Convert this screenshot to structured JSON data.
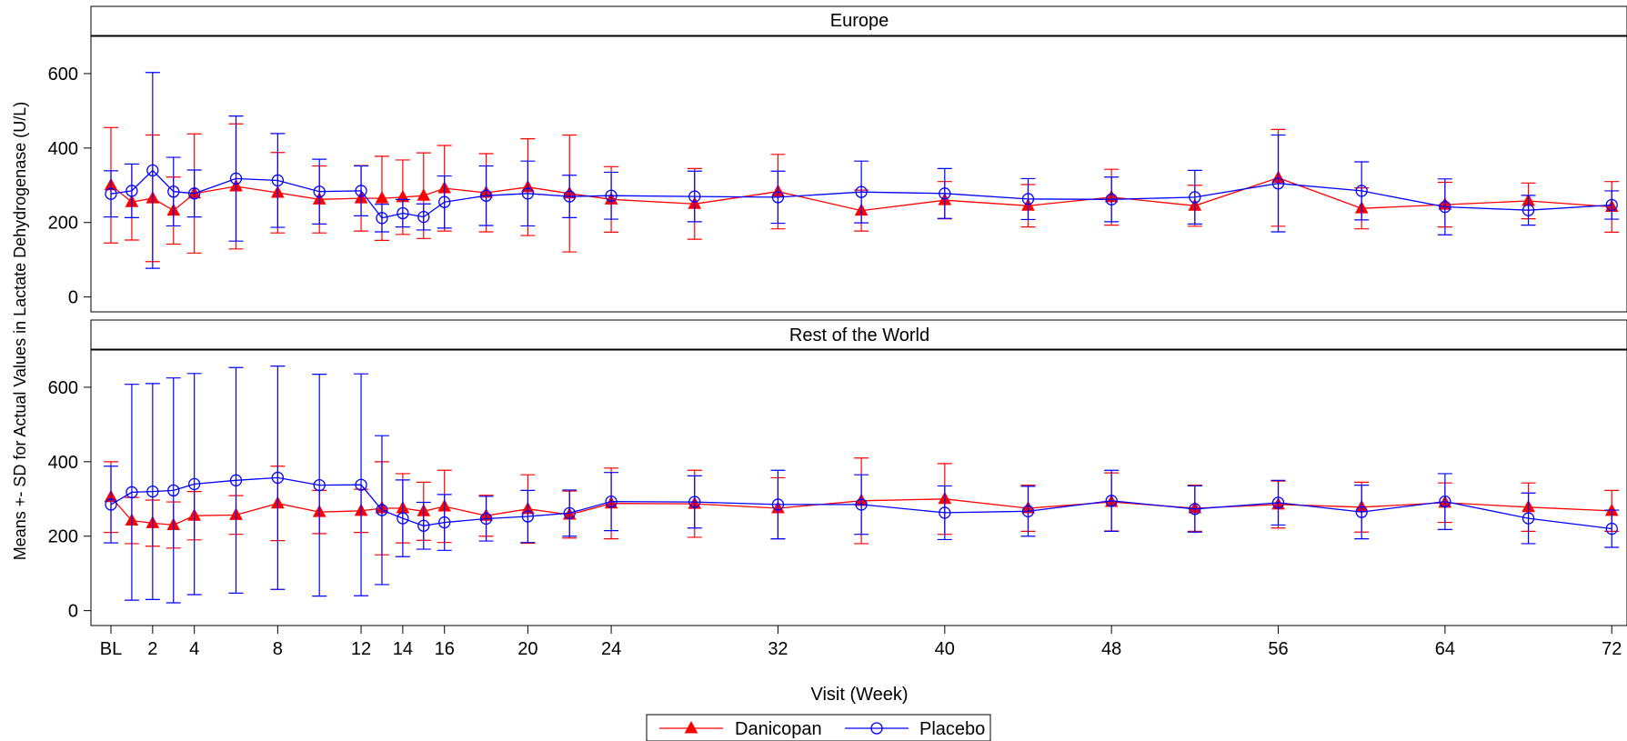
{
  "chart_data": {
    "type": "line",
    "ylabel": "Means +- SD for Actual Values in Lactate Dehydrogenase (U/L)",
    "xlabel": "Visit (Week)",
    "x_ticks": [
      {
        "x": 0,
        "label": "BL"
      },
      {
        "x": 2,
        "label": "2"
      },
      {
        "x": 4,
        "label": "4"
      },
      {
        "x": 8,
        "label": "8"
      },
      {
        "x": 12,
        "label": "12"
      },
      {
        "x": 14,
        "label": "14"
      },
      {
        "x": 16,
        "label": "16"
      },
      {
        "x": 20,
        "label": "20"
      },
      {
        "x": 24,
        "label": "24"
      },
      {
        "x": 32,
        "label": "32"
      },
      {
        "x": 40,
        "label": "40"
      },
      {
        "x": 48,
        "label": "48"
      },
      {
        "x": 56,
        "label": "56"
      },
      {
        "x": 64,
        "label": "64"
      },
      {
        "x": 72,
        "label": "72"
      }
    ],
    "y_ticks": [
      0,
      200,
      400,
      600
    ],
    "ylim": [
      -40,
      700
    ],
    "xlim": [
      -1,
      72.6
    ],
    "legend": {
      "placement": "bottom-center"
    },
    "series_styles": [
      {
        "name": "Danicopan",
        "color": "#ff0000",
        "marker": "filled-triangle"
      },
      {
        "name": "Placebo",
        "color": "#0000ff",
        "marker": "open-circle"
      }
    ],
    "panels": [
      {
        "title": "Europe",
        "series": [
          {
            "name": "Danicopan",
            "points": [
              {
                "x": 0,
                "mean": 300,
                "sd": 155
              },
              {
                "x": 1,
                "mean": 255,
                "sd": 102
              },
              {
                "x": 2,
                "mean": 265,
                "sd": 170
              },
              {
                "x": 3,
                "mean": 232,
                "sd": 90
              },
              {
                "x": 4,
                "mean": 278,
                "sd": 160
              },
              {
                "x": 6,
                "mean": 297,
                "sd": 168
              },
              {
                "x": 8,
                "mean": 280,
                "sd": 108
              },
              {
                "x": 10,
                "mean": 262,
                "sd": 90
              },
              {
                "x": 12,
                "mean": 265,
                "sd": 88
              },
              {
                "x": 13,
                "mean": 265,
                "sd": 113
              },
              {
                "x": 14,
                "mean": 268,
                "sd": 100
              },
              {
                "x": 15,
                "mean": 272,
                "sd": 115
              },
              {
                "x": 16,
                "mean": 292,
                "sd": 115
              },
              {
                "x": 18,
                "mean": 280,
                "sd": 105
              },
              {
                "x": 20,
                "mean": 295,
                "sd": 130
              },
              {
                "x": 22,
                "mean": 278,
                "sd": 157
              },
              {
                "x": 24,
                "mean": 262,
                "sd": 88
              },
              {
                "x": 28,
                "mean": 250,
                "sd": 95
              },
              {
                "x": 32,
                "mean": 283,
                "sd": 100
              },
              {
                "x": 36,
                "mean": 232,
                "sd": 55
              },
              {
                "x": 40,
                "mean": 260,
                "sd": 50
              },
              {
                "x": 44,
                "mean": 245,
                "sd": 57
              },
              {
                "x": 48,
                "mean": 268,
                "sd": 75
              },
              {
                "x": 52,
                "mean": 245,
                "sd": 55
              },
              {
                "x": 56,
                "mean": 320,
                "sd": 130
              },
              {
                "x": 60,
                "mean": 238,
                "sd": 55
              },
              {
                "x": 64,
                "mean": 248,
                "sd": 60
              },
              {
                "x": 68,
                "mean": 258,
                "sd": 48
              },
              {
                "x": 72,
                "mean": 242,
                "sd": 68
              }
            ]
          },
          {
            "name": "Placebo",
            "points": [
              {
                "x": 0,
                "mean": 277,
                "sd": 62
              },
              {
                "x": 1,
                "mean": 285,
                "sd": 72
              },
              {
                "x": 2,
                "mean": 340,
                "sd": 263
              },
              {
                "x": 3,
                "mean": 283,
                "sd": 92
              },
              {
                "x": 4,
                "mean": 278,
                "sd": 63
              },
              {
                "x": 6,
                "mean": 318,
                "sd": 168
              },
              {
                "x": 8,
                "mean": 313,
                "sd": 126
              },
              {
                "x": 10,
                "mean": 283,
                "sd": 87
              },
              {
                "x": 12,
                "mean": 285,
                "sd": 67
              },
              {
                "x": 13,
                "mean": 212,
                "sd": 37
              },
              {
                "x": 14,
                "mean": 225,
                "sd": 37
              },
              {
                "x": 15,
                "mean": 215,
                "sd": 35
              },
              {
                "x": 16,
                "mean": 255,
                "sd": 70
              },
              {
                "x": 18,
                "mean": 272,
                "sd": 80
              },
              {
                "x": 20,
                "mean": 278,
                "sd": 87
              },
              {
                "x": 22,
                "mean": 270,
                "sd": 57
              },
              {
                "x": 24,
                "mean": 272,
                "sd": 63
              },
              {
                "x": 28,
                "mean": 270,
                "sd": 68
              },
              {
                "x": 32,
                "mean": 268,
                "sd": 70
              },
              {
                "x": 36,
                "mean": 282,
                "sd": 83
              },
              {
                "x": 40,
                "mean": 278,
                "sd": 67
              },
              {
                "x": 44,
                "mean": 263,
                "sd": 55
              },
              {
                "x": 48,
                "mean": 262,
                "sd": 60
              },
              {
                "x": 52,
                "mean": 268,
                "sd": 72
              },
              {
                "x": 56,
                "mean": 305,
                "sd": 130
              },
              {
                "x": 60,
                "mean": 285,
                "sd": 78
              },
              {
                "x": 64,
                "mean": 242,
                "sd": 75
              },
              {
                "x": 68,
                "mean": 233,
                "sd": 40
              },
              {
                "x": 72,
                "mean": 247,
                "sd": 38
              }
            ]
          }
        ]
      },
      {
        "title": "Rest of the World",
        "series": [
          {
            "name": "Danicopan",
            "points": [
              {
                "x": 0,
                "mean": 305,
                "sd": 95
              },
              {
                "x": 1,
                "mean": 242,
                "sd": 62
              },
              {
                "x": 2,
                "mean": 235,
                "sd": 62
              },
              {
                "x": 3,
                "mean": 230,
                "sd": 62
              },
              {
                "x": 4,
                "mean": 255,
                "sd": 65
              },
              {
                "x": 6,
                "mean": 257,
                "sd": 52
              },
              {
                "x": 8,
                "mean": 288,
                "sd": 100
              },
              {
                "x": 10,
                "mean": 265,
                "sd": 58
              },
              {
                "x": 12,
                "mean": 268,
                "sd": 58
              },
              {
                "x": 13,
                "mean": 275,
                "sd": 125
              },
              {
                "x": 14,
                "mean": 275,
                "sd": 93
              },
              {
                "x": 15,
                "mean": 267,
                "sd": 78
              },
              {
                "x": 16,
                "mean": 280,
                "sd": 97
              },
              {
                "x": 18,
                "mean": 255,
                "sd": 55
              },
              {
                "x": 20,
                "mean": 273,
                "sd": 92
              },
              {
                "x": 22,
                "mean": 258,
                "sd": 63
              },
              {
                "x": 24,
                "mean": 288,
                "sd": 95
              },
              {
                "x": 28,
                "mean": 287,
                "sd": 90
              },
              {
                "x": 32,
                "mean": 275,
                "sd": 82
              },
              {
                "x": 36,
                "mean": 295,
                "sd": 115
              },
              {
                "x": 40,
                "mean": 300,
                "sd": 95
              },
              {
                "x": 44,
                "mean": 275,
                "sd": 62
              },
              {
                "x": 48,
                "mean": 292,
                "sd": 78
              },
              {
                "x": 52,
                "mean": 275,
                "sd": 62
              },
              {
                "x": 56,
                "mean": 285,
                "sd": 63
              },
              {
                "x": 60,
                "mean": 278,
                "sd": 67
              },
              {
                "x": 64,
                "mean": 290,
                "sd": 53
              },
              {
                "x": 68,
                "mean": 278,
                "sd": 65
              },
              {
                "x": 72,
                "mean": 268,
                "sd": 55
              }
            ]
          },
          {
            "name": "Placebo",
            "points": [
              {
                "x": 0,
                "mean": 285,
                "sd": 103
              },
              {
                "x": 1,
                "mean": 318,
                "sd": 290
              },
              {
                "x": 2,
                "mean": 320,
                "sd": 290
              },
              {
                "x": 3,
                "mean": 323,
                "sd": 302
              },
              {
                "x": 4,
                "mean": 340,
                "sd": 297
              },
              {
                "x": 6,
                "mean": 350,
                "sd": 303
              },
              {
                "x": 8,
                "mean": 357,
                "sd": 300
              },
              {
                "x": 10,
                "mean": 337,
                "sd": 298
              },
              {
                "x": 12,
                "mean": 338,
                "sd": 298
              },
              {
                "x": 13,
                "mean": 270,
                "sd": 200
              },
              {
                "x": 14,
                "mean": 248,
                "sd": 103
              },
              {
                "x": 15,
                "mean": 228,
                "sd": 63
              },
              {
                "x": 16,
                "mean": 237,
                "sd": 75
              },
              {
                "x": 18,
                "mean": 247,
                "sd": 60
              },
              {
                "x": 20,
                "mean": 253,
                "sd": 70
              },
              {
                "x": 22,
                "mean": 262,
                "sd": 62
              },
              {
                "x": 24,
                "mean": 293,
                "sd": 78
              },
              {
                "x": 28,
                "mean": 292,
                "sd": 70
              },
              {
                "x": 32,
                "mean": 285,
                "sd": 92
              },
              {
                "x": 36,
                "mean": 285,
                "sd": 80
              },
              {
                "x": 40,
                "mean": 263,
                "sd": 72
              },
              {
                "x": 44,
                "mean": 267,
                "sd": 67
              },
              {
                "x": 48,
                "mean": 295,
                "sd": 82
              },
              {
                "x": 52,
                "mean": 273,
                "sd": 62
              },
              {
                "x": 56,
                "mean": 290,
                "sd": 60
              },
              {
                "x": 60,
                "mean": 265,
                "sd": 72
              },
              {
                "x": 64,
                "mean": 293,
                "sd": 75
              },
              {
                "x": 68,
                "mean": 248,
                "sd": 68
              },
              {
                "x": 72,
                "mean": 220,
                "sd": 50
              }
            ]
          }
        ]
      }
    ]
  }
}
